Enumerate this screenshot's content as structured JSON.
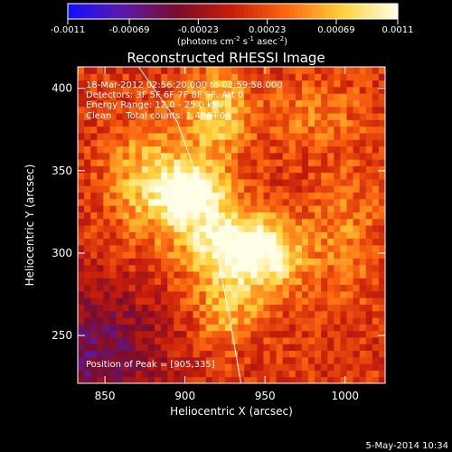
{
  "chart_data": {
    "type": "heatmap",
    "title": "Reconstructed RHESSI Image",
    "xlabel": "Heliocentric X (arcsec)",
    "ylabel": "Heliocentric Y (arcsec)",
    "xlim": [
      833,
      1025
    ],
    "ylim": [
      221,
      413
    ],
    "x_ticks": [
      850,
      900,
      950,
      1000
    ],
    "y_ticks": [
      250,
      300,
      350,
      400
    ],
    "colorbar": {
      "min": -0.0011,
      "max": 0.0011,
      "ticks": [
        "-0.0011",
        "-0.00069",
        "-0.00023",
        "0.00023",
        "0.00069",
        "0.0011"
      ],
      "unit_label": "(photons cm",
      "unit_sup1": "-2",
      "unit_mid": " s",
      "unit_sup2": "-1",
      "unit_mid2": " asec",
      "unit_sup3": "-2",
      "unit_end": ")",
      "colors": [
        "#1010ff",
        "#5a1aa8",
        "#7a0c2a",
        "#c81e0a",
        "#ff6a10",
        "#ffd23a",
        "#ffffe8"
      ]
    },
    "annotations": [
      "18-Mar-2012 02:56:20.000 to 02:59:58.000",
      "Detectors: 3F 5F 6F 7F 8F 9F, Att 0",
      "Energy Range: 12.0 - 25.0 keV",
      "Clean     Total counts: 1.486+04"
    ],
    "peak_label": "Position of Peak = [905,335]",
    "peak": [
      905,
      335
    ],
    "sources": [
      {
        "x": 905,
        "y": 336,
        "amp": 0.0011,
        "sx": 16,
        "sy": 14
      },
      {
        "x": 928,
        "y": 302,
        "amp": 0.00095,
        "sx": 22,
        "sy": 16
      },
      {
        "x": 953,
        "y": 298,
        "amp": 0.0006,
        "sx": 16,
        "sy": 18
      },
      {
        "x": 920,
        "y": 385,
        "amp": 0.0007,
        "sx": 14,
        "sy": 18
      },
      {
        "x": 875,
        "y": 345,
        "amp": 0.00055,
        "sx": 18,
        "sy": 26
      },
      {
        "x": 925,
        "y": 262,
        "amp": 0.0005,
        "sx": 14,
        "sy": 14
      },
      {
        "x": 1000,
        "y": 312,
        "amp": 0.00035,
        "sx": 16,
        "sy": 28
      },
      {
        "x": 980,
        "y": 385,
        "amp": 0.0003,
        "sx": 24,
        "sy": 16
      }
    ],
    "background_level": 0.0001,
    "negative_region": {
      "x": 845,
      "y": 240,
      "amp": -0.0006,
      "sx": 30,
      "sy": 30
    },
    "limb_curve": [
      [
        871,
        413
      ],
      [
        895,
        380
      ],
      [
        910,
        340
      ],
      [
        920,
        300
      ],
      [
        928,
        260
      ],
      [
        935,
        221
      ]
    ]
  },
  "footer_date": "5-May-2014 10:34"
}
